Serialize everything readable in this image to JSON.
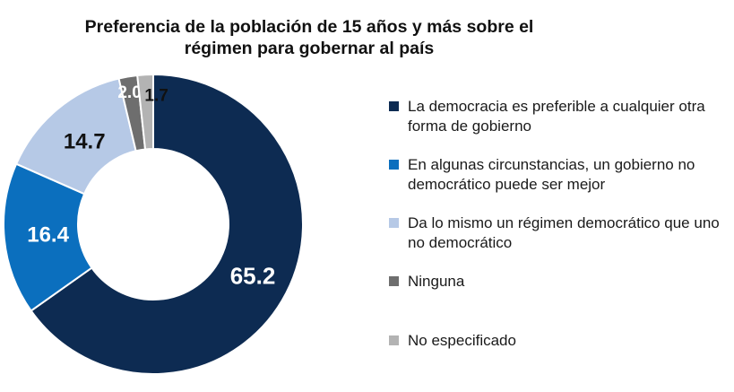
{
  "chart_data": {
    "type": "pie",
    "title_lines": [
      "Preferencia de la población de 15 años y más sobre el",
      "régimen para gobernar al país"
    ],
    "series": [
      {
        "name": "La democracia es preferible a cualquier otra forma de gobierno",
        "value": 65.2,
        "label": "65.2",
        "color": "#0d2b52",
        "label_color": "#ffffff"
      },
      {
        "name": "En algunas circunstancias, un gobierno no democrático puede ser mejor",
        "value": 16.4,
        "label": "16.4",
        "color": "#0b6fbe",
        "label_color": "#ffffff"
      },
      {
        "name": "Da lo mismo un régimen democrático que uno no democrático",
        "value": 14.7,
        "label": "14.7",
        "color": "#b6c9e6",
        "label_color": "#111111"
      },
      {
        "name": "Ninguna",
        "value": 2.0,
        "label": "2.0",
        "color": "#6e6e6e",
        "label_color": "#ffffff"
      },
      {
        "name": "No especificado",
        "value": 1.7,
        "label": "1.7",
        "color": "#b3b3b3",
        "label_color": "#111111"
      }
    ],
    "legend_position": "right"
  }
}
